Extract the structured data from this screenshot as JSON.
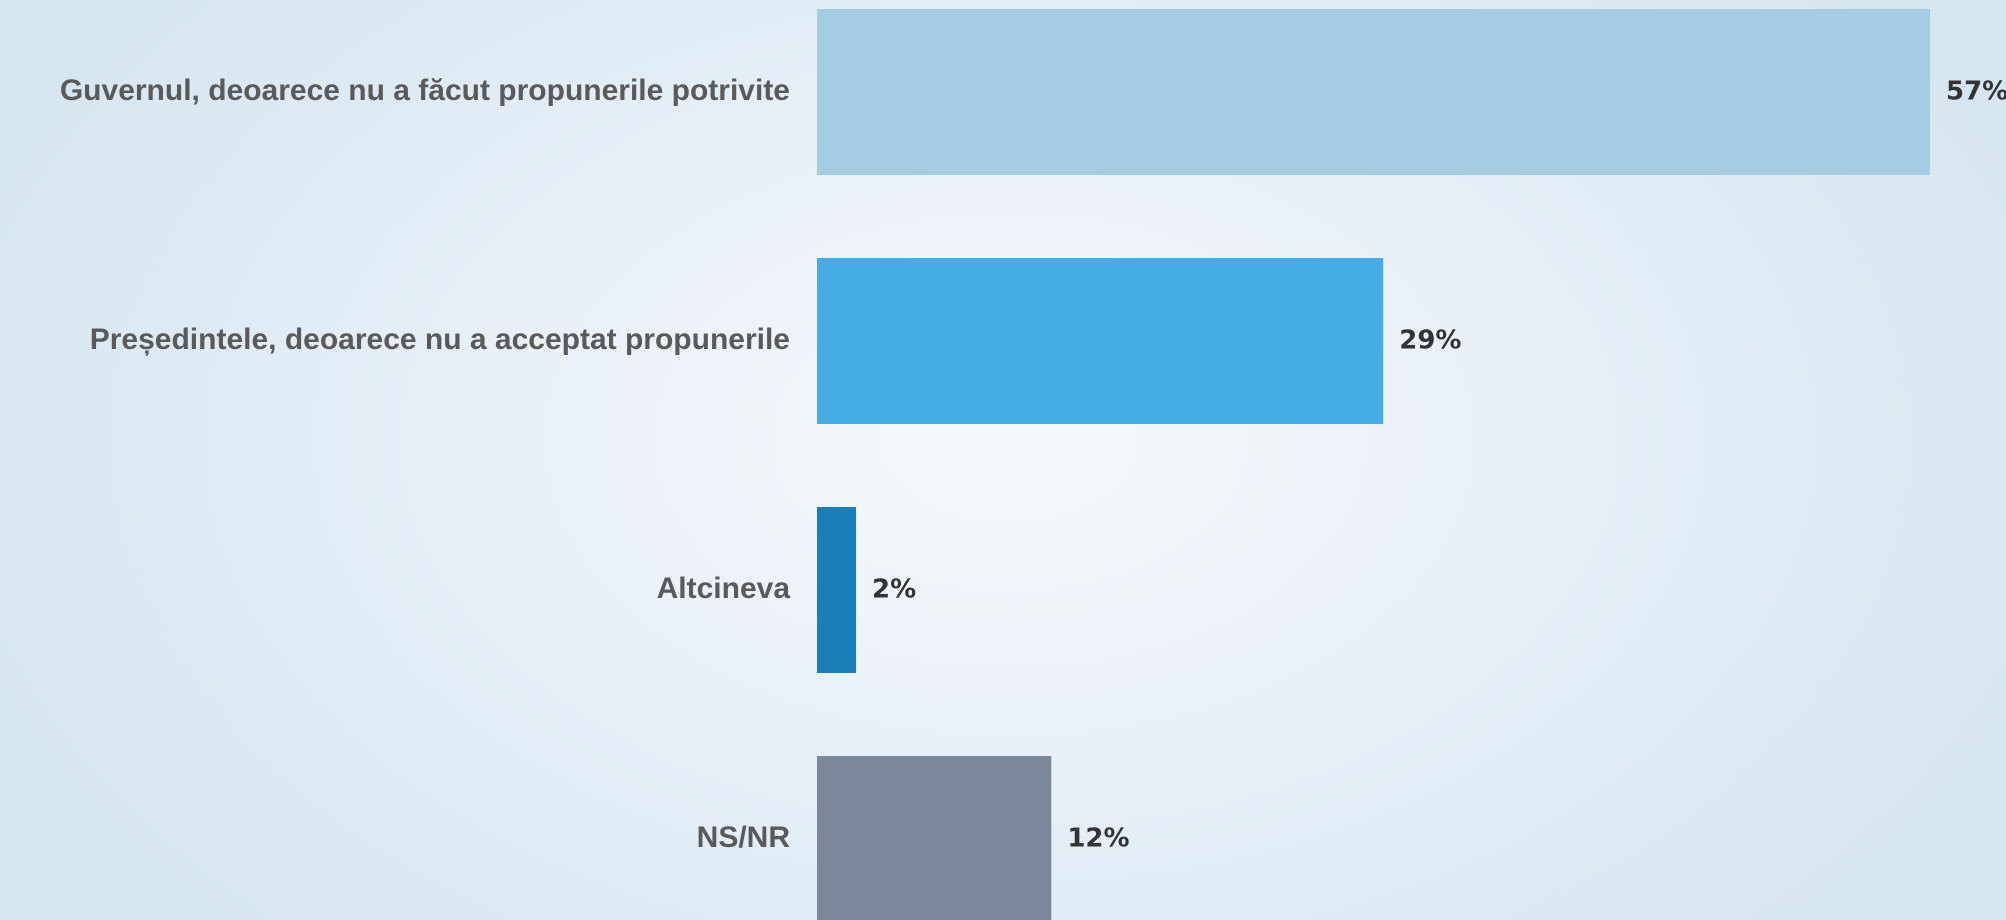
{
  "chart_data": {
    "type": "bar",
    "orientation": "horizontal",
    "categories": [
      "Guvernul, deoarece nu a făcut propunerile potrivite",
      "Președintele, deoarece nu a acceptat propunerile",
      "Altcineva",
      "NS/NR"
    ],
    "values": [
      57,
      29,
      2,
      12
    ],
    "value_labels": [
      "57%",
      "29%",
      "2%",
      "12%"
    ],
    "bar_colors": [
      "#a4cde4",
      "#45ace5",
      "#1a7fb8",
      "#7b889b"
    ],
    "title": "",
    "xlabel": "",
    "ylabel": "",
    "xlim": [
      0,
      57
    ],
    "grid": false,
    "legend": "none"
  }
}
